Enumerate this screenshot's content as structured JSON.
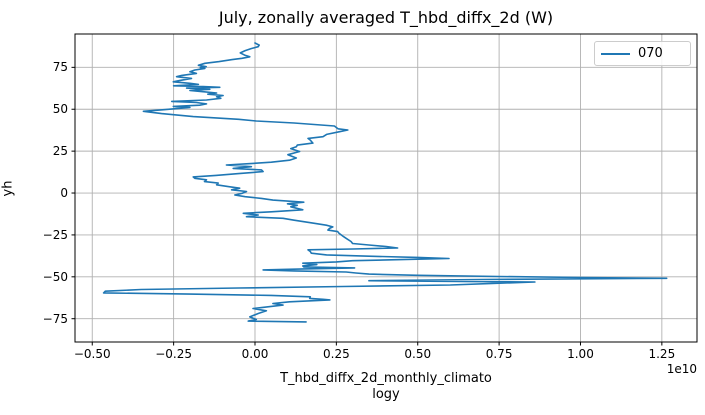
{
  "chart_data": {
    "type": "line",
    "title": "July, zonally averaged T_hbd_diffx_2d (W)",
    "xlabel_lines": [
      "T_hbd_diffx_2d_monthly_climato",
      "logy"
    ],
    "ylabel": "yh",
    "offset_text": "1e10",
    "grid": true,
    "legend": {
      "position": "upper right",
      "entries": [
        {
          "label": "070",
          "color": "#1f77b4"
        }
      ]
    },
    "x_ticks": [
      -0.5,
      -0.25,
      0.0,
      0.25,
      0.5,
      0.75,
      1.0,
      1.25
    ],
    "x_tick_labels": [
      "−0.50",
      "−0.25",
      "0.00",
      "0.25",
      "0.50",
      "0.75",
      "1.00",
      "1.25"
    ],
    "y_ticks": [
      75,
      50,
      25,
      0,
      -25,
      -50,
      -75
    ],
    "y_tick_labels": [
      "75",
      "50",
      "25",
      "0",
      "−25",
      "−50",
      "−75"
    ],
    "xlim": [
      -0.553,
      1.358
    ],
    "ylim": [
      -88.9,
      94.9
    ],
    "x_units": "1e10 W",
    "colors": {
      "line": "#1f77b4",
      "grid": "#b0b0b0",
      "spine": "#000000",
      "text": "#000000",
      "legend_border": "#cccccc"
    },
    "series": [
      {
        "name": "070",
        "points": [
          [
            0.0,
            89.5
          ],
          [
            0.013,
            88.3
          ],
          [
            0.01,
            87.3
          ],
          [
            -0.012,
            86.2
          ],
          [
            -0.03,
            85.0
          ],
          [
            -0.045,
            83.6
          ],
          [
            -0.032,
            82.3
          ],
          [
            -0.016,
            81.3
          ],
          [
            -0.04,
            80.4
          ],
          [
            -0.07,
            79.6
          ],
          [
            -0.11,
            78.4
          ],
          [
            -0.154,
            77.4
          ],
          [
            -0.174,
            76.2
          ],
          [
            -0.15,
            75.4
          ],
          [
            -0.168,
            74.9
          ],
          [
            -0.154,
            74.4
          ],
          [
            -0.185,
            73.4
          ],
          [
            -0.2,
            72.4
          ],
          [
            -0.18,
            71.4
          ],
          [
            -0.225,
            70.2
          ],
          [
            -0.241,
            69.4
          ],
          [
            -0.195,
            68.4
          ],
          [
            -0.23,
            67.2
          ],
          [
            -0.251,
            66.4
          ],
          [
            -0.2,
            65.5
          ],
          [
            -0.174,
            64.8
          ],
          [
            -0.25,
            64.0
          ],
          [
            -0.159,
            63.6
          ],
          [
            -0.108,
            63.1
          ],
          [
            -0.21,
            62.6
          ],
          [
            -0.139,
            61.9
          ],
          [
            -0.2,
            61.2
          ],
          [
            -0.164,
            60.5
          ],
          [
            -0.118,
            59.7
          ],
          [
            -0.145,
            59.0
          ],
          [
            -0.098,
            58.2
          ],
          [
            -0.118,
            57.4
          ],
          [
            -0.105,
            56.5
          ],
          [
            -0.149,
            55.5
          ],
          [
            -0.256,
            54.7
          ],
          [
            -0.18,
            54.0
          ],
          [
            -0.149,
            53.2
          ],
          [
            -0.17,
            52.4
          ],
          [
            -0.251,
            51.7
          ],
          [
            -0.2,
            51.1
          ],
          [
            -0.24,
            50.4
          ],
          [
            -0.28,
            49.7
          ],
          [
            -0.343,
            48.8
          ],
          [
            -0.287,
            47.4
          ],
          [
            -0.19,
            45.6
          ],
          [
            -0.05,
            44.0
          ],
          [
            0.004,
            43.0
          ],
          [
            0.12,
            41.8
          ],
          [
            0.244,
            40.0
          ],
          [
            0.255,
            38.3
          ],
          [
            0.285,
            37.6
          ],
          [
            0.26,
            36.6
          ],
          [
            0.22,
            35.0
          ],
          [
            0.209,
            33.6
          ],
          [
            0.163,
            32.6
          ],
          [
            0.17,
            31.6
          ],
          [
            0.178,
            29.8
          ],
          [
            0.13,
            28.6
          ],
          [
            0.127,
            27.6
          ],
          [
            0.11,
            26.5
          ],
          [
            0.137,
            24.8
          ],
          [
            0.101,
            22.9
          ],
          [
            0.127,
            20.9
          ],
          [
            0.106,
            19.6
          ],
          [
            0.05,
            18.4
          ],
          [
            -0.02,
            17.5
          ],
          [
            -0.088,
            16.7
          ],
          [
            -0.011,
            15.7
          ],
          [
            -0.067,
            14.7
          ],
          [
            0.02,
            13.8
          ],
          [
            0.025,
            12.8
          ],
          [
            -0.05,
            11.6
          ],
          [
            -0.12,
            10.5
          ],
          [
            -0.19,
            9.6
          ],
          [
            -0.185,
            8.8
          ],
          [
            -0.149,
            7.9
          ],
          [
            -0.155,
            6.8
          ],
          [
            -0.113,
            5.9
          ],
          [
            -0.118,
            4.9
          ],
          [
            -0.08,
            3.8
          ],
          [
            -0.047,
            2.9
          ],
          [
            -0.072,
            1.9
          ],
          [
            -0.026,
            0.9
          ],
          [
            -0.04,
            -0.2
          ],
          [
            -0.062,
            -1.2
          ],
          [
            -0.03,
            -2.2
          ],
          [
            0.02,
            -3.2
          ],
          [
            0.055,
            -4.2
          ],
          [
            0.15,
            -5.5
          ],
          [
            0.1,
            -6.4
          ],
          [
            0.13,
            -7.3
          ],
          [
            0.11,
            -8.2
          ],
          [
            0.147,
            -10.0
          ],
          [
            0.05,
            -11.2
          ],
          [
            -0.036,
            -12.1
          ],
          [
            0.01,
            -13.1
          ],
          [
            -0.026,
            -14.1
          ],
          [
            0.086,
            -15.1
          ],
          [
            0.12,
            -16.2
          ],
          [
            0.18,
            -18.0
          ],
          [
            0.219,
            -19.2
          ],
          [
            0.239,
            -20.2
          ],
          [
            0.229,
            -21.1
          ],
          [
            0.224,
            -22.1
          ],
          [
            0.254,
            -23.0
          ],
          [
            0.258,
            -24.0
          ],
          [
            0.265,
            -25.0
          ],
          [
            0.272,
            -26.0
          ],
          [
            0.28,
            -27.0
          ],
          [
            0.295,
            -28.9
          ],
          [
            0.3,
            -30.1
          ],
          [
            0.35,
            -31.0
          ],
          [
            0.403,
            -31.9
          ],
          [
            0.438,
            -32.8
          ],
          [
            0.3,
            -33.4
          ],
          [
            0.163,
            -33.9
          ],
          [
            0.17,
            -34.9
          ],
          [
            0.173,
            -35.9
          ],
          [
            0.22,
            -36.9
          ],
          [
            0.35,
            -37.7
          ],
          [
            0.5,
            -38.4
          ],
          [
            0.596,
            -39.1
          ],
          [
            0.45,
            -39.7
          ],
          [
            0.3,
            -40.4
          ],
          [
            0.25,
            -41.1
          ],
          [
            0.147,
            -41.9
          ],
          [
            0.19,
            -42.7
          ],
          [
            0.147,
            -43.5
          ],
          [
            0.15,
            -44.1
          ],
          [
            0.306,
            -44.7
          ],
          [
            0.15,
            -45.3
          ],
          [
            0.025,
            -45.9
          ],
          [
            0.12,
            -46.5
          ],
          [
            0.28,
            -47.1
          ],
          [
            0.31,
            -47.7
          ],
          [
            0.35,
            -48.4
          ],
          [
            0.5,
            -49.1
          ],
          [
            0.75,
            -49.8
          ],
          [
            1.0,
            -50.4
          ],
          [
            1.265,
            -50.9
          ],
          [
            0.7,
            -51.6
          ],
          [
            0.35,
            -52.3
          ],
          [
            0.86,
            -53.1
          ],
          [
            0.74,
            -53.9
          ],
          [
            0.6,
            -54.9
          ],
          [
            0.27,
            -55.8
          ],
          [
            -0.05,
            -56.7
          ],
          [
            -0.35,
            -57.6
          ],
          [
            -0.46,
            -58.6
          ],
          [
            -0.465,
            -59.6
          ],
          [
            -0.2,
            -60.3
          ],
          [
            0.05,
            -61.1
          ],
          [
            0.17,
            -61.9
          ],
          [
            0.168,
            -62.9
          ],
          [
            0.209,
            -63.4
          ],
          [
            0.23,
            -63.8
          ],
          [
            0.106,
            -64.9
          ],
          [
            0.055,
            -65.9
          ],
          [
            0.086,
            -66.9
          ],
          [
            -0.006,
            -68.9
          ],
          [
            0.035,
            -70.3
          ],
          [
            0.01,
            -71.9
          ],
          [
            -0.016,
            -73.9
          ],
          [
            0.004,
            -75.5
          ],
          [
            -0.021,
            -76.4
          ],
          [
            0.157,
            -76.9
          ]
        ]
      }
    ]
  }
}
